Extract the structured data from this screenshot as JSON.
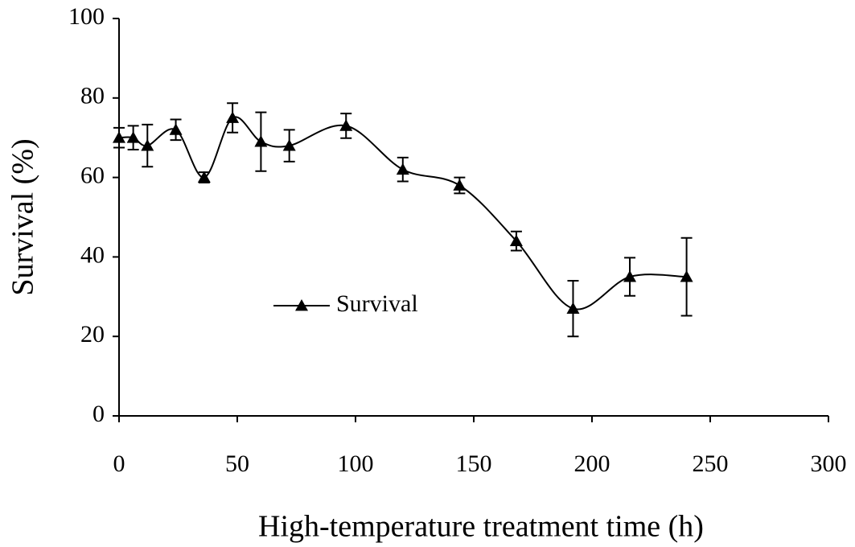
{
  "chart_data": {
    "type": "line",
    "xlabel": "High-temperature treatment time (h)",
    "ylabel": "Survival (%)",
    "x": [
      0,
      6,
      12,
      24,
      36,
      48,
      60,
      72,
      96,
      120,
      144,
      168,
      192,
      216,
      240
    ],
    "series": [
      {
        "name": "Survival",
        "color": "#000000",
        "values": [
          70,
          70,
          68,
          72,
          60,
          75,
          69,
          68,
          73,
          62,
          58,
          44,
          27,
          35,
          35
        ],
        "errors": [
          2.5,
          3,
          5.3,
          2.6,
          1.3,
          3.7,
          7.4,
          4,
          3.1,
          3,
          2,
          2.4,
          7,
          4.8,
          9.8
        ]
      }
    ],
    "xlim": [
      0,
      300
    ],
    "ylim": [
      0,
      100
    ],
    "xticks": [
      0,
      50,
      100,
      150,
      200,
      250,
      300
    ],
    "yticks": [
      0,
      20,
      40,
      60,
      80,
      100
    ],
    "grid": false,
    "legend": "center left"
  }
}
